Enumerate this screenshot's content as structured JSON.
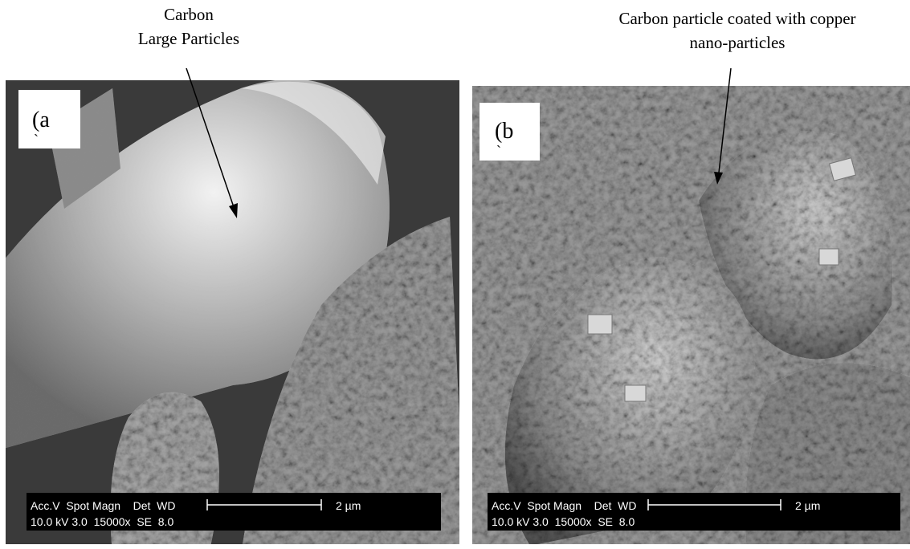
{
  "panels": [
    {
      "annotation": [
        "Carbon",
        "Large Particles"
      ],
      "label": "(a",
      "label_mark": "`",
      "info": {
        "header": "Acc.V  Spot Magn    Det  WD",
        "scale": "2 µm",
        "values": "10.0 kV 3.0  15000x  SE  8.0"
      }
    },
    {
      "annotation": [
        "Carbon particle coated with copper",
        "nano-particles"
      ],
      "label": "(b",
      "label_mark": "`",
      "info": {
        "header": "Acc.V  Spot Magn    Det  WD",
        "scale": "2 µm",
        "values": "10.0 kV 3.0  15000x  SE  8.0"
      }
    }
  ]
}
